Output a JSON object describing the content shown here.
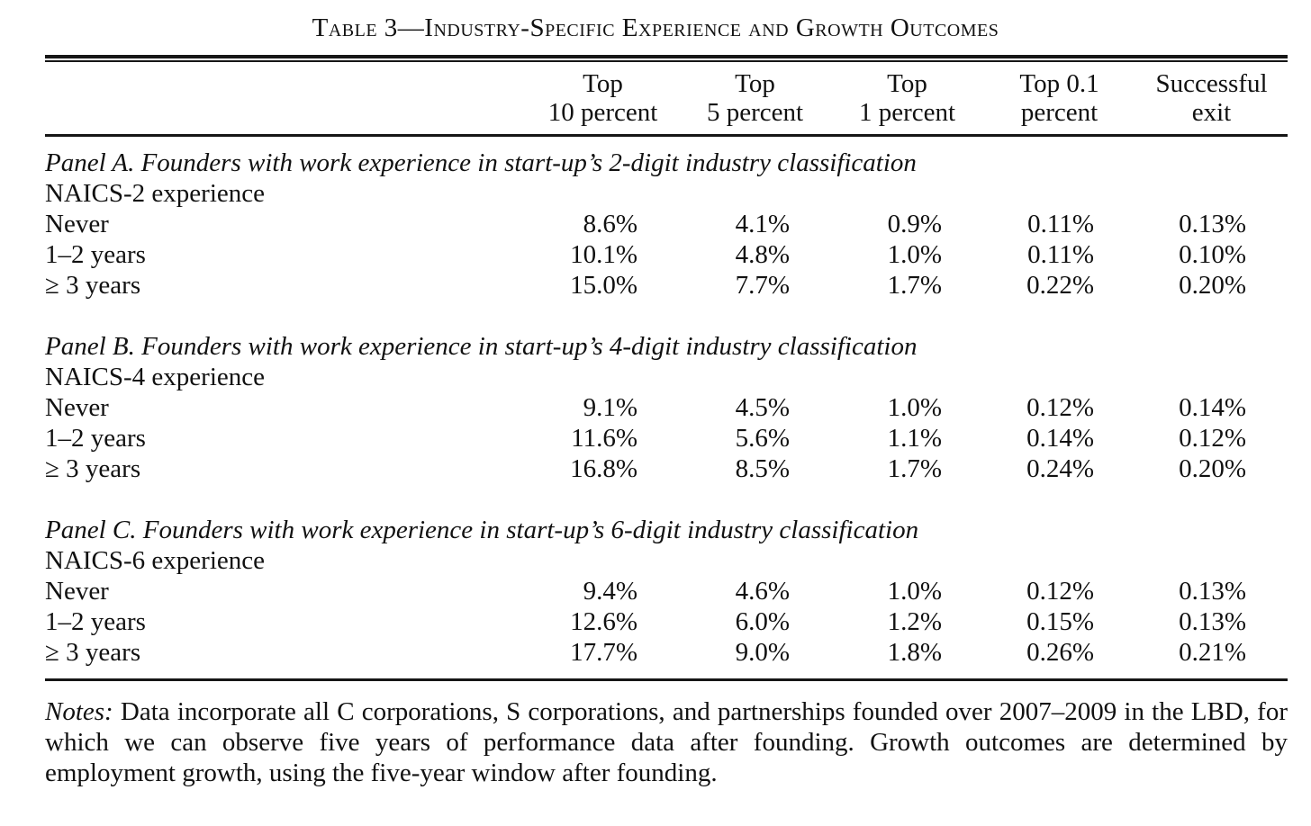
{
  "table": {
    "title": "Table 3—Industry-Specific Experience and Growth Outcomes",
    "columns": [
      {
        "line1": "Top",
        "line2": "10 percent"
      },
      {
        "line1": "Top",
        "line2": "5 percent"
      },
      {
        "line1": "Top",
        "line2": "1 percent"
      },
      {
        "line1": "Top 0.1",
        "line2": "percent"
      },
      {
        "line1": "Successful",
        "line2": "exit"
      }
    ],
    "panels": [
      {
        "heading": "Panel A. Founders with work experience in start-up’s 2-digit industry classification",
        "subheading": "NAICS-2 experience",
        "rows": [
          {
            "label": "Never",
            "values": [
              "8.6%",
              "4.1%",
              "0.9%",
              "0.11%",
              "0.13%"
            ]
          },
          {
            "label": "1–2 years",
            "values": [
              "10.1%",
              "4.8%",
              "1.0%",
              "0.11%",
              "0.10%"
            ]
          },
          {
            "label": "≥ 3 years",
            "values": [
              "15.0%",
              "7.7%",
              "1.7%",
              "0.22%",
              "0.20%"
            ]
          }
        ]
      },
      {
        "heading": "Panel B. Founders with work experience in start-up’s 4-digit industry classification",
        "subheading": "NAICS-4 experience",
        "rows": [
          {
            "label": "Never",
            "values": [
              "9.1%",
              "4.5%",
              "1.0%",
              "0.12%",
              "0.14%"
            ]
          },
          {
            "label": "1–2 years",
            "values": [
              "11.6%",
              "5.6%",
              "1.1%",
              "0.14%",
              "0.12%"
            ]
          },
          {
            "label": "≥ 3 years",
            "values": [
              "16.8%",
              "8.5%",
              "1.7%",
              "0.24%",
              "0.20%"
            ]
          }
        ]
      },
      {
        "heading": "Panel C. Founders with work experience in start-up’s 6-digit industry classification",
        "subheading": "NAICS-6 experience",
        "rows": [
          {
            "label": "Never",
            "values": [
              "9.4%",
              "4.6%",
              "1.0%",
              "0.12%",
              "0.13%"
            ]
          },
          {
            "label": "1–2 years",
            "values": [
              "12.6%",
              "6.0%",
              "1.2%",
              "0.15%",
              "0.13%"
            ]
          },
          {
            "label": "≥ 3 years",
            "values": [
              "17.7%",
              "9.0%",
              "1.8%",
              "0.26%",
              "0.21%"
            ]
          }
        ]
      }
    ],
    "notes_label": "Notes:",
    "notes_text": " Data incorporate all C corporations, S corporations, and partnerships founded over 2007–2009 in the LBD, for which we can observe five years of performance data after founding. Growth outcomes are determined by employment growth, using the five-year window after founding."
  }
}
